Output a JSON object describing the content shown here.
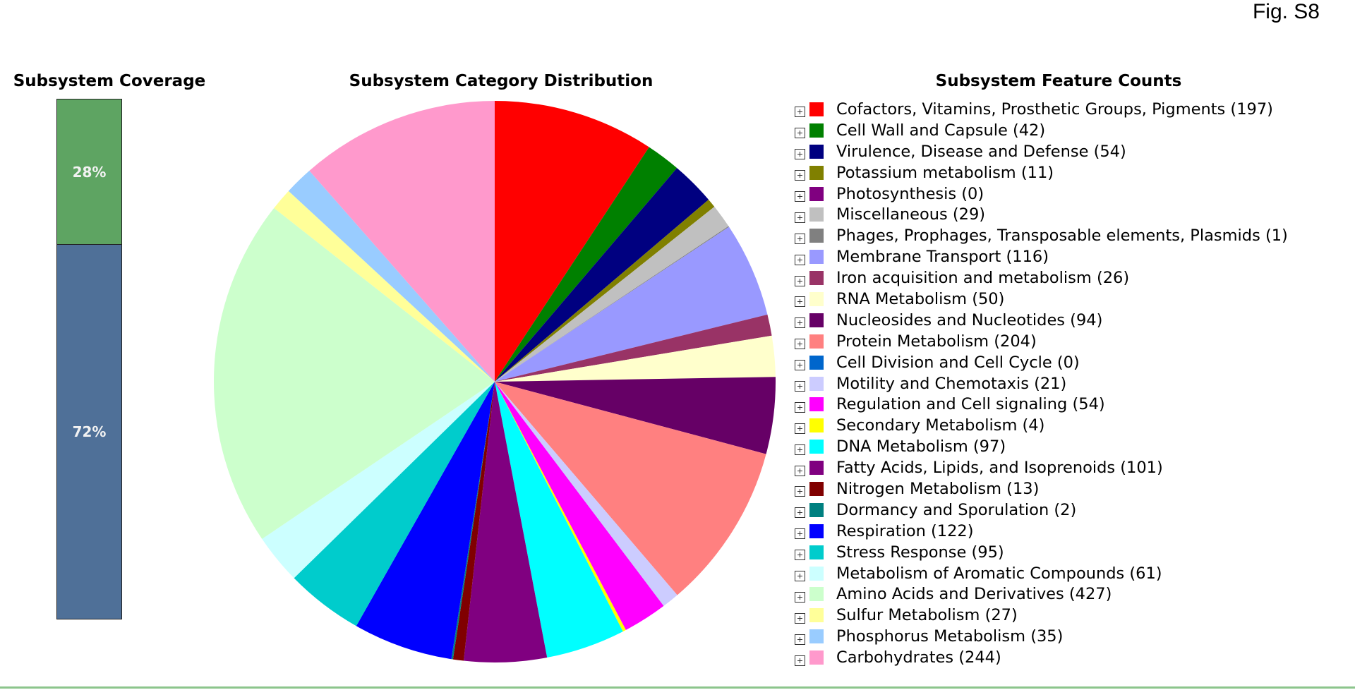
{
  "figure_label": "Fig. S8",
  "coverage": {
    "title": "Subsystem Coverage",
    "top_label": "28%",
    "bottom_label": "72%",
    "top_fraction": 0.28,
    "bottom_fraction": 0.72,
    "colors": {
      "top": "#5ea462",
      "bottom": "#4f7098"
    }
  },
  "distribution_title": "Subsystem Category Distribution",
  "counts_title": "Subsystem Feature Counts",
  "icons": {
    "expand": "plus-box-icon"
  },
  "chart_data": {
    "type": "pie",
    "title": "Subsystem Category Distribution",
    "start": "12 o'clock, clockwise",
    "legend_placement": "right",
    "categories": [
      {
        "name": "Cofactors, Vitamins, Prosthetic Groups, Pigments",
        "value": 197,
        "color": "#ff0000"
      },
      {
        "name": "Cell Wall and Capsule",
        "value": 42,
        "color": "#008000"
      },
      {
        "name": "Virulence, Disease and Defense",
        "value": 54,
        "color": "#000080"
      },
      {
        "name": "Potassium metabolism",
        "value": 11,
        "color": "#808000"
      },
      {
        "name": "Photosynthesis",
        "value": 0,
        "color": "#800080"
      },
      {
        "name": "Miscellaneous",
        "value": 29,
        "color": "#c0c0c0"
      },
      {
        "name": "Phages, Prophages, Transposable elements, Plasmids",
        "value": 1,
        "color": "#808080"
      },
      {
        "name": "Membrane Transport",
        "value": 116,
        "color": "#9999ff"
      },
      {
        "name": "Iron acquisition and metabolism",
        "value": 26,
        "color": "#993366"
      },
      {
        "name": "RNA Metabolism",
        "value": 50,
        "color": "#ffffcc"
      },
      {
        "name": "Nucleosides and Nucleotides",
        "value": 94,
        "color": "#660066"
      },
      {
        "name": "Protein Metabolism",
        "value": 204,
        "color": "#ff8080"
      },
      {
        "name": "Cell Division and Cell Cycle",
        "value": 0,
        "color": "#0066cc"
      },
      {
        "name": "Motility and Chemotaxis",
        "value": 21,
        "color": "#ccccff"
      },
      {
        "name": "Regulation and Cell signaling",
        "value": 54,
        "color": "#ff00ff"
      },
      {
        "name": "Secondary Metabolism",
        "value": 4,
        "color": "#ffff00"
      },
      {
        "name": "DNA Metabolism",
        "value": 97,
        "color": "#00ffff"
      },
      {
        "name": "Fatty Acids, Lipids, and Isoprenoids",
        "value": 101,
        "color": "#800080"
      },
      {
        "name": "Nitrogen Metabolism",
        "value": 13,
        "color": "#800000"
      },
      {
        "name": "Dormancy and Sporulation",
        "value": 2,
        "color": "#008080"
      },
      {
        "name": "Respiration",
        "value": 122,
        "color": "#0000ff"
      },
      {
        "name": "Stress Response",
        "value": 95,
        "color": "#00cccc"
      },
      {
        "name": "Metabolism of Aromatic Compounds",
        "value": 61,
        "color": "#ccffff"
      },
      {
        "name": "Amino Acids and Derivatives",
        "value": 427,
        "color": "#ccffcc"
      },
      {
        "name": "Sulfur Metabolism",
        "value": 27,
        "color": "#ffff99"
      },
      {
        "name": "Phosphorus Metabolism",
        "value": 35,
        "color": "#99ccff"
      },
      {
        "name": "Carbohydrates",
        "value": 244,
        "color": "#ff99cc"
      }
    ]
  }
}
